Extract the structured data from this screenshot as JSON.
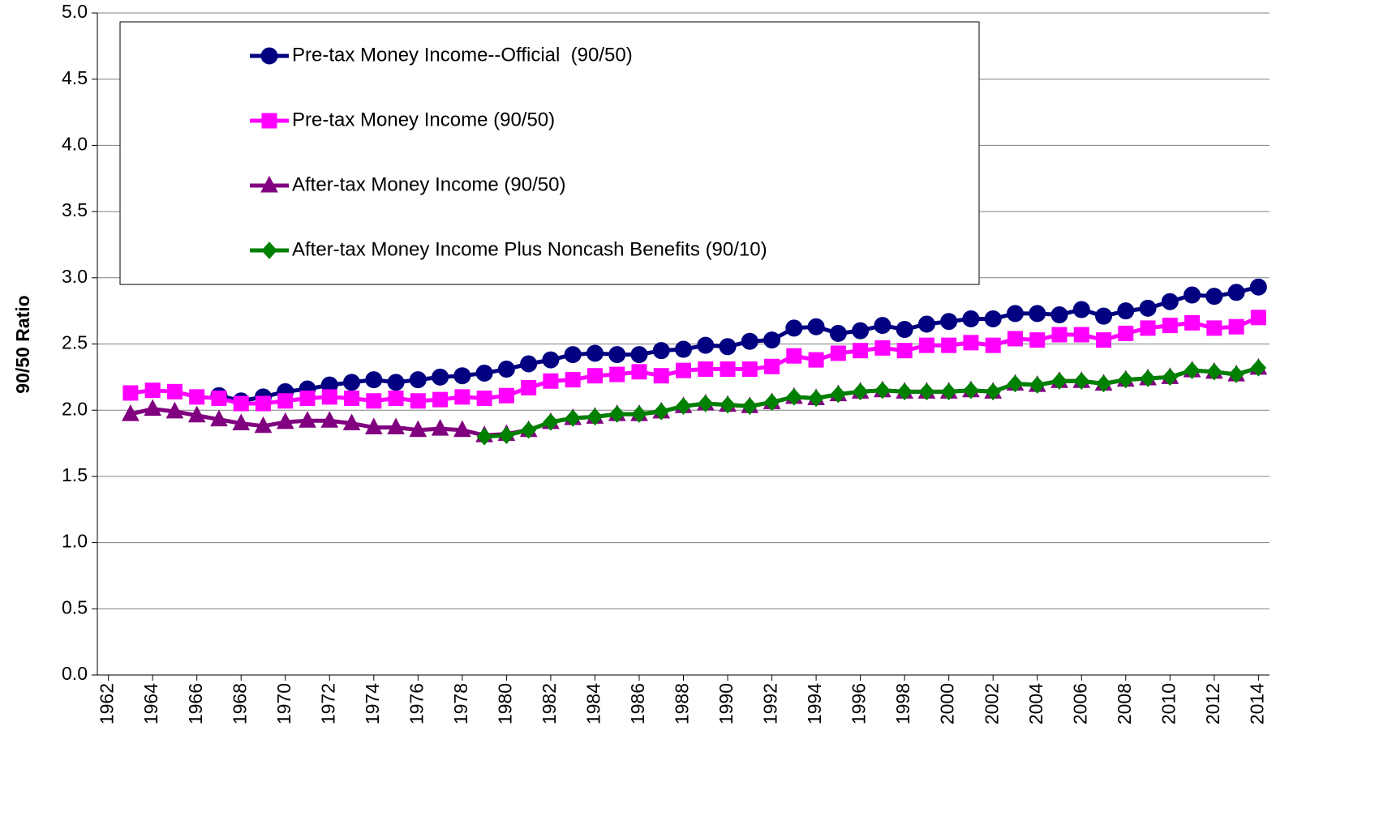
{
  "chart_data": {
    "type": "line",
    "y_label": "90/50 Ratio",
    "x": [
      1963,
      1964,
      1965,
      1966,
      1967,
      1968,
      1969,
      1970,
      1971,
      1972,
      1973,
      1974,
      1975,
      1976,
      1977,
      1978,
      1979,
      1980,
      1981,
      1982,
      1983,
      1984,
      1985,
      1986,
      1987,
      1988,
      1989,
      1990,
      1991,
      1992,
      1993,
      1994,
      1995,
      1996,
      1997,
      1998,
      1999,
      2000,
      2001,
      2002,
      2003,
      2004,
      2005,
      2006,
      2007,
      2008,
      2009,
      2010,
      2011,
      2012,
      2013,
      2014
    ],
    "series": [
      {
        "name": "Pre-tax Money Income--Official  (90/50)",
        "color": "#000080",
        "marker": "circle",
        "values": [
          null,
          null,
          null,
          null,
          2.11,
          2.07,
          2.1,
          2.14,
          2.16,
          2.19,
          2.21,
          2.23,
          2.21,
          2.23,
          2.25,
          2.26,
          2.28,
          2.31,
          2.35,
          2.38,
          2.42,
          2.43,
          2.42,
          2.42,
          2.45,
          2.46,
          2.49,
          2.48,
          2.52,
          2.53,
          2.62,
          2.63,
          2.58,
          2.6,
          2.64,
          2.61,
          2.65,
          2.67,
          2.69,
          2.69,
          2.73,
          2.73,
          2.72,
          2.76,
          2.71,
          2.75,
          2.77,
          2.82,
          2.87,
          2.86,
          2.89,
          2.93
        ]
      },
      {
        "name": "Pre-tax Money Income (90/50)",
        "color": "#ff00ff",
        "marker": "square",
        "values": [
          2.13,
          2.15,
          2.14,
          2.1,
          2.09,
          2.05,
          2.05,
          2.07,
          2.09,
          2.1,
          2.09,
          2.07,
          2.09,
          2.07,
          2.08,
          2.1,
          2.09,
          2.11,
          2.17,
          2.22,
          2.23,
          2.26,
          2.27,
          2.29,
          2.26,
          2.3,
          2.31,
          2.31,
          2.31,
          2.33,
          2.41,
          2.38,
          2.43,
          2.45,
          2.47,
          2.45,
          2.49,
          2.49,
          2.51,
          2.49,
          2.54,
          2.53,
          2.57,
          2.57,
          2.53,
          2.58,
          2.62,
          2.64,
          2.66,
          2.62,
          2.63,
          2.7
        ]
      },
      {
        "name": "After-tax Money Income (90/50)",
        "color": "#800080",
        "marker": "triangle",
        "values": [
          1.97,
          2.01,
          1.99,
          1.96,
          1.93,
          1.9,
          1.88,
          1.91,
          1.92,
          1.92,
          1.9,
          1.87,
          1.87,
          1.85,
          1.86,
          1.85,
          1.81,
          1.82,
          1.85,
          1.91,
          1.94,
          1.95,
          1.97,
          1.97,
          1.99,
          2.03,
          2.05,
          2.04,
          2.03,
          2.06,
          2.1,
          2.09,
          2.12,
          2.14,
          2.15,
          2.14,
          2.14,
          2.14,
          2.15,
          2.14,
          2.2,
          2.19,
          2.22,
          2.22,
          2.2,
          2.23,
          2.24,
          2.25,
          2.3,
          2.29,
          2.27,
          2.32
        ]
      },
      {
        "name": "After-tax Money Income Plus Noncash Benefits (90/10)",
        "color": "#008000",
        "marker": "diamond",
        "values": [
          null,
          null,
          null,
          null,
          null,
          null,
          null,
          null,
          null,
          null,
          null,
          null,
          null,
          null,
          null,
          null,
          1.8,
          1.81,
          1.85,
          1.91,
          1.94,
          1.95,
          1.97,
          1.97,
          1.99,
          2.03,
          2.05,
          2.04,
          2.03,
          2.06,
          2.1,
          2.09,
          2.12,
          2.14,
          2.15,
          2.14,
          2.14,
          2.14,
          2.15,
          2.14,
          2.2,
          2.19,
          2.22,
          2.22,
          2.2,
          2.23,
          2.24,
          2.25,
          2.3,
          2.29,
          2.27,
          2.32
        ]
      }
    ],
    "xlim": [
      1961.5,
      2014.5
    ],
    "xticks": [
      1962,
      1964,
      1966,
      1968,
      1970,
      1972,
      1974,
      1976,
      1978,
      1980,
      1982,
      1984,
      1986,
      1988,
      1990,
      1992,
      1994,
      1996,
      1998,
      2000,
      2002,
      2004,
      2006,
      2008,
      2010,
      2012,
      2014
    ],
    "ylim": [
      0,
      5
    ],
    "yticks": [
      {
        "value": 0,
        "label": "0.0"
      },
      {
        "value": 0.5,
        "label": "0.5"
      },
      {
        "value": 1,
        "label": "1.0"
      },
      {
        "value": 1.5,
        "label": "1.5"
      },
      {
        "value": 2,
        "label": "2.0"
      },
      {
        "value": 2.5,
        "label": "2.5"
      },
      {
        "value": 3,
        "label": "3.0"
      },
      {
        "value": 3.5,
        "label": "3.5"
      },
      {
        "value": 4,
        "label": "4.0"
      },
      {
        "value": 4.5,
        "label": "4.5"
      },
      {
        "value": 5,
        "label": "5.0"
      }
    ],
    "grid": true
  }
}
